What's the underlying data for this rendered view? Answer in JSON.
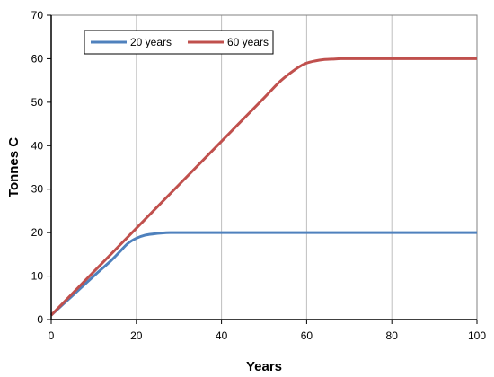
{
  "chart_data": {
    "type": "line",
    "xlabel": "Years",
    "ylabel": "Tonnes C",
    "xlim": [
      0,
      100
    ],
    "ylim": [
      0,
      70
    ],
    "xticks": [
      0,
      20,
      40,
      60,
      80,
      100
    ],
    "yticks": [
      0,
      10,
      20,
      30,
      40,
      50,
      60,
      70
    ],
    "grid": "vertical lines only",
    "legend_position": "top-left",
    "series": [
      {
        "name": "20 years",
        "color": "#4F81BD",
        "x": [
          0,
          5,
          10,
          14,
          16,
          18,
          20,
          22,
          24,
          26,
          28,
          30,
          40,
          60,
          80,
          100
        ],
        "y": [
          1,
          5.5,
          10,
          13.5,
          15.5,
          17.5,
          18.7,
          19.4,
          19.7,
          19.9,
          20,
          20,
          20,
          20,
          20,
          20
        ]
      },
      {
        "name": "60 years",
        "color": "#C0504D",
        "x": [
          0,
          10,
          20,
          30,
          40,
          50,
          54,
          58,
          60,
          62,
          64,
          66,
          68,
          70,
          80,
          90,
          100
        ],
        "y": [
          1,
          11,
          21,
          31,
          41,
          51,
          55,
          58,
          59,
          59.5,
          59.8,
          59.9,
          60,
          60,
          60,
          60,
          60
        ]
      }
    ]
  }
}
